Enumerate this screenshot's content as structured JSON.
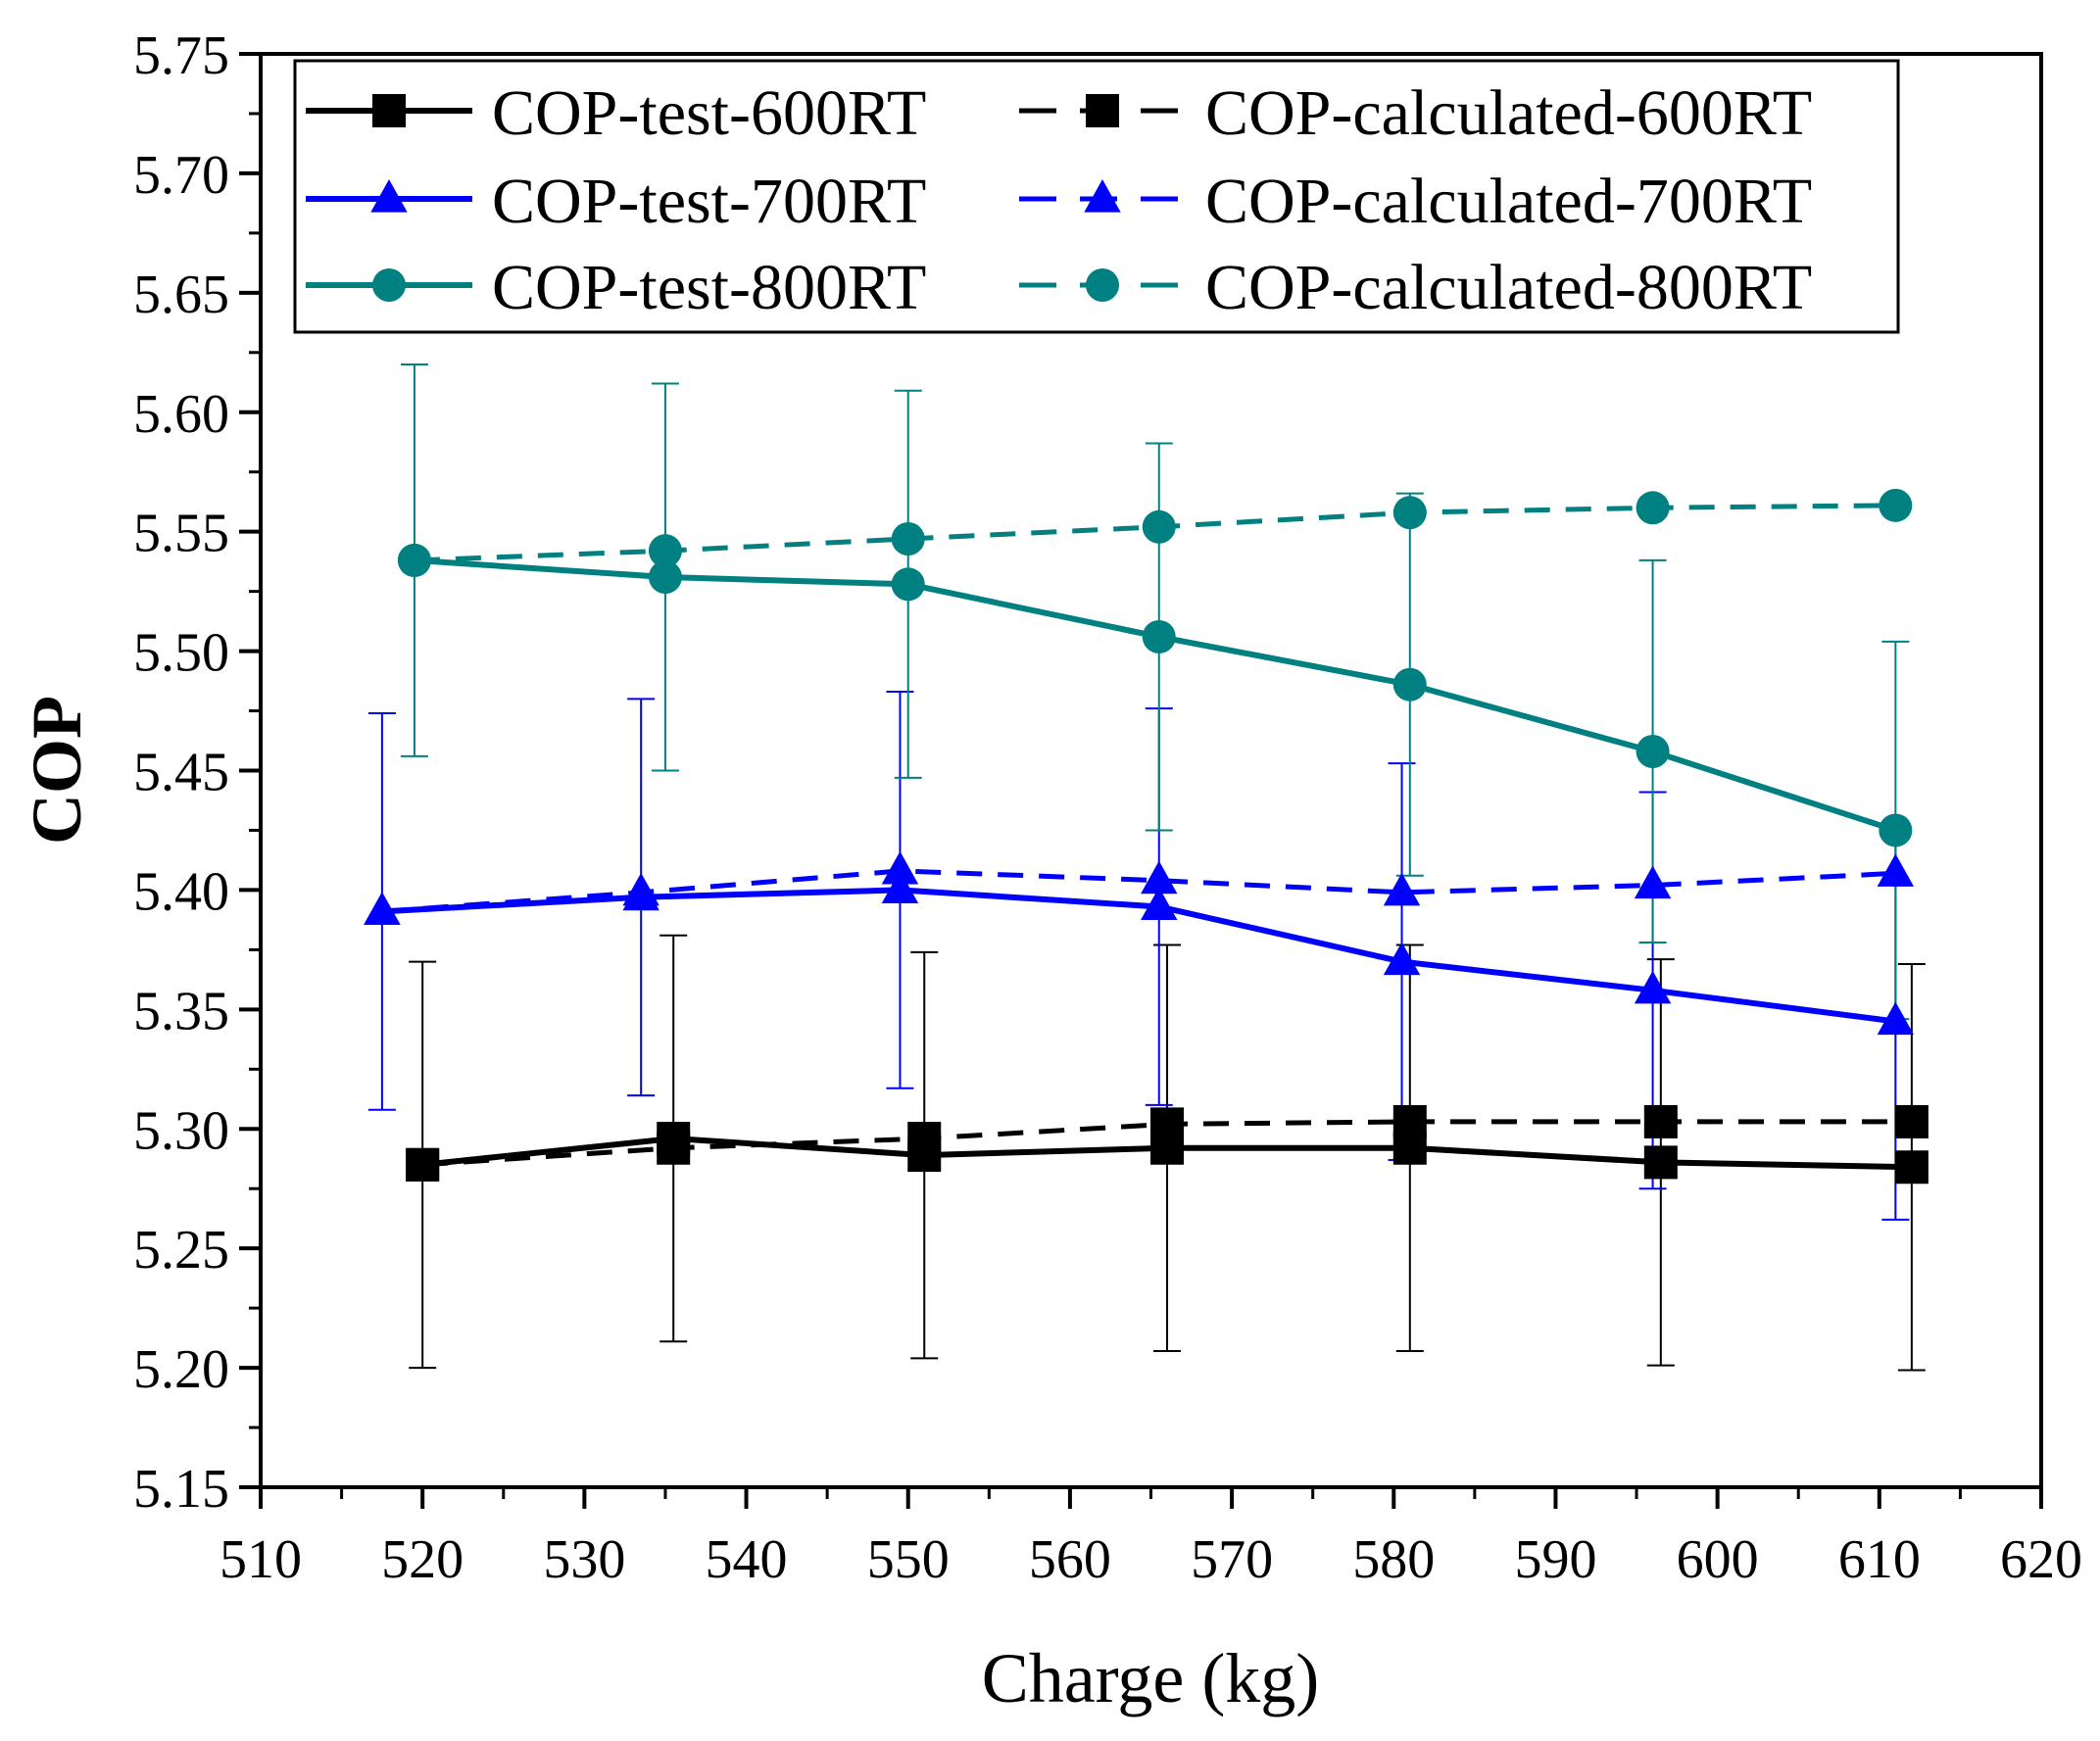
{
  "chart_data": {
    "type": "line",
    "title": "",
    "xlabel": "Charge (kg)",
    "ylabel": "COP",
    "xlim": [
      510,
      620
    ],
    "ylim": [
      5.15,
      5.75
    ],
    "xticks": [
      510,
      520,
      530,
      540,
      550,
      560,
      570,
      580,
      590,
      600,
      610,
      620
    ],
    "yticks": [
      5.15,
      5.2,
      5.25,
      5.3,
      5.35,
      5.4,
      5.45,
      5.5,
      5.55,
      5.6,
      5.65,
      5.7,
      5.75
    ],
    "x_tick_labels": [
      "510",
      "520",
      "530",
      "540",
      "550",
      "560",
      "570",
      "580",
      "590",
      "600",
      "610",
      "620"
    ],
    "y_tick_labels": [
      "5.15",
      "5.20",
      "5.25",
      "5.30",
      "5.35",
      "5.40",
      "5.45",
      "5.50",
      "5.55",
      "5.60",
      "5.65",
      "5.70",
      "5.75"
    ],
    "grid": false,
    "legend_position": "top",
    "series": [
      {
        "name": "COP-test-600RT",
        "color": "#000000",
        "marker": "square",
        "dash": "solid",
        "x": [
          520,
          535.5,
          551,
          566,
          581,
          596.5,
          612
        ],
        "values": [
          5.285,
          5.296,
          5.289,
          5.292,
          5.292,
          5.286,
          5.284
        ],
        "error": [
          0.085,
          0.085,
          0.085,
          0.085,
          0.085,
          0.085,
          0.085
        ]
      },
      {
        "name": "COP-calculated-600RT",
        "color": "#000000",
        "marker": "square",
        "dash": "dashed",
        "x": [
          520,
          535.5,
          551,
          566,
          581,
          596.5,
          612
        ],
        "values": [
          5.285,
          5.292,
          5.296,
          5.302,
          5.303,
          5.303,
          5.303
        ],
        "error": null
      },
      {
        "name": "COP-test-700RT",
        "color": "#0000ff",
        "marker": "triangle",
        "dash": "solid",
        "x": [
          517.5,
          533.5,
          549.5,
          565.5,
          580.5,
          596,
          611
        ],
        "values": [
          5.391,
          5.397,
          5.4,
          5.393,
          5.37,
          5.358,
          5.345
        ],
        "error": [
          0.083,
          0.083,
          0.083,
          0.083,
          0.083,
          0.083,
          0.083
        ]
      },
      {
        "name": "COP-calculated-700RT",
        "color": "#0000ff",
        "marker": "triangle",
        "dash": "dashed",
        "x": [
          517.5,
          533.5,
          549.5,
          565.5,
          580.5,
          596,
          611
        ],
        "values": [
          5.391,
          5.399,
          5.408,
          5.404,
          5.399,
          5.402,
          5.407
        ],
        "error": null
      },
      {
        "name": "COP-test-800RT",
        "color": "#008080",
        "marker": "circle",
        "dash": "solid",
        "x": [
          519.5,
          535,
          550,
          565.5,
          581,
          596,
          611
        ],
        "values": [
          5.538,
          5.531,
          5.528,
          5.506,
          5.486,
          5.458,
          5.425
        ],
        "error": [
          0.082,
          0.081,
          0.081,
          0.081,
          0.08,
          0.08,
          0.079
        ]
      },
      {
        "name": "COP-calculated-800RT",
        "color": "#008080",
        "marker": "circle",
        "dash": "dashed",
        "x": [
          519.5,
          535,
          550,
          565.5,
          581,
          596,
          611
        ],
        "values": [
          5.538,
          5.542,
          5.547,
          5.552,
          5.558,
          5.56,
          5.561
        ],
        "error": null
      }
    ]
  }
}
